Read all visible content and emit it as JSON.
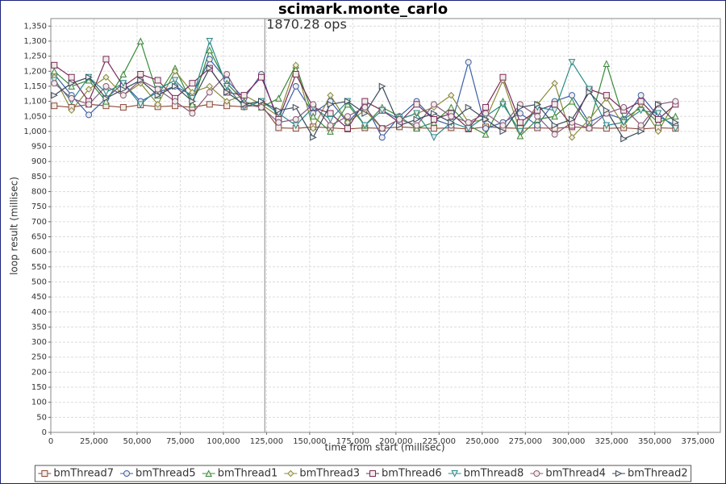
{
  "chart_data": {
    "type": "line",
    "title": "scimark.monte_carlo",
    "xlabel": "time from start (millisec)",
    "ylabel": "loop result (millisec)",
    "annotations": [
      {
        "x": 124000,
        "text": "1870.28 ops"
      }
    ],
    "x": [
      2000,
      12000,
      22000,
      32000,
      42000,
      52000,
      62000,
      72000,
      82000,
      92000,
      102000,
      112000,
      122000,
      132000,
      142000,
      152000,
      162000,
      172000,
      182000,
      192000,
      202000,
      212000,
      222000,
      232000,
      242000,
      252000,
      262000,
      272000,
      282000,
      292000,
      302000,
      312000,
      322000,
      332000,
      342000,
      352000,
      362000
    ],
    "xlim": [
      0,
      388000
    ],
    "xticks": [
      0,
      {
        "value": 25000,
        "label": "25,000"
      },
      {
        "value": 50000,
        "label": "50,000"
      },
      {
        "value": 75000,
        "label": "75,000"
      },
      {
        "value": 100000,
        "label": "100,000"
      },
      {
        "value": 125000,
        "label": "125,000"
      },
      {
        "value": 150000,
        "label": "150,000"
      },
      {
        "value": 175000,
        "label": "175,000"
      },
      {
        "value": 200000,
        "label": "200,000"
      },
      {
        "value": 225000,
        "label": "225,000"
      },
      {
        "value": 250000,
        "label": "250,000"
      },
      {
        "value": 275000,
        "label": "275,000"
      },
      {
        "value": 300000,
        "label": "300,000"
      },
      {
        "value": 325000,
        "label": "325,000"
      },
      {
        "value": 350000,
        "label": "350,000"
      },
      {
        "value": 375000,
        "label": "375,000"
      }
    ],
    "ylim": [
      0,
      1375
    ],
    "yticks": [
      0,
      50,
      100,
      150,
      200,
      250,
      300,
      350,
      400,
      450,
      500,
      550,
      600,
      650,
      700,
      750,
      800,
      850,
      900,
      950,
      {
        "value": 1000,
        "label": "1,000"
      },
      {
        "value": 1050,
        "label": "1,050"
      },
      {
        "value": 1100,
        "label": "1,100"
      },
      {
        "value": 1150,
        "label": "1,150"
      },
      {
        "value": 1200,
        "label": "1,200"
      },
      {
        "value": 1250,
        "label": "1,250"
      },
      {
        "value": 1300,
        "label": "1,300"
      },
      {
        "value": 1350,
        "label": "1,350"
      }
    ],
    "grid": true,
    "legend": "bottom",
    "series": [
      {
        "name": "bmThread7",
        "color": "#8b4a3a",
        "marker": "square",
        "values": [
          1085,
          1080,
          1090,
          1085,
          1080,
          1088,
          1082,
          1085,
          1080,
          1090,
          1085,
          1082,
          1088,
          1012,
          1010,
          1015,
          1012,
          1008,
          1012,
          1010,
          1015,
          1012,
          1010,
          1012,
          1008,
          1015,
          1012,
          1010,
          1012,
          1010,
          1015,
          1012,
          1010,
          1012,
          1008,
          1012,
          1010
        ]
      },
      {
        "name": "bmThread5",
        "color": "#3a5fa8",
        "marker": "circle",
        "values": [
          1190,
          1120,
          1055,
          1110,
          1160,
          1100,
          1130,
          1150,
          1120,
          1240,
          1170,
          1110,
          1190,
          1030,
          1150,
          1060,
          1100,
          1030,
          1090,
          980,
          1050,
          1100,
          1040,
          1020,
          1230,
          1010,
          1030,
          1060,
          1020,
          1100,
          1120,
          1030,
          1060,
          1040,
          1120,
          1050,
          1020
        ]
      },
      {
        "name": "bmThread1",
        "color": "#3a8a3a",
        "marker": "triangle-up",
        "values": [
          1200,
          1150,
          1170,
          1100,
          1190,
          1300,
          1120,
          1210,
          1090,
          1270,
          1160,
          1100,
          1080,
          1110,
          1220,
          1050,
          1000,
          1090,
          1020,
          1080,
          1050,
          1010,
          1030,
          1080,
          1020,
          990,
          1100,
          985,
          1040,
          1050,
          1100,
          1020,
          1225,
          1040,
          1080,
          1030,
          1050
        ]
      },
      {
        "name": "bmThread3",
        "color": "#8a8a3a",
        "marker": "diamond",
        "values": [
          1180,
          1070,
          1140,
          1180,
          1120,
          1160,
          1090,
          1200,
          1130,
          1150,
          1100,
          1120,
          1090,
          1050,
          1220,
          1010,
          1120,
          1030,
          1070,
          1010,
          1040,
          1060,
          1080,
          1120,
          1030,
          1040,
          1170,
          1000,
          1090,
          1160,
          980,
          1040,
          1110,
          1020,
          1090,
          1000,
          1100
        ]
      },
      {
        "name": "bmThread6",
        "color": "#7a2a5a",
        "marker": "square",
        "values": [
          1220,
          1180,
          1100,
          1240,
          1150,
          1190,
          1170,
          1110,
          1160,
          1210,
          1130,
          1120,
          1180,
          1040,
          1190,
          1080,
          1060,
          1010,
          1100,
          1070,
          1030,
          1090,
          1040,
          1060,
          1010,
          1080,
          1180,
          1030,
          1070,
          1090,
          1020,
          1140,
          1120,
          1070,
          1100,
          1040,
          1090
        ]
      },
      {
        "name": "bmThread8",
        "color": "#2a8a8a",
        "marker": "triangle-down",
        "values": [
          1170,
          1100,
          1180,
          1130,
          1160,
          1090,
          1140,
          1170,
          1110,
          1300,
          1150,
          1080,
          1100,
          1060,
          1020,
          1080,
          1040,
          1100,
          1020,
          1070,
          1040,
          1060,
          980,
          1030,
          1010,
          1050,
          1090,
          1000,
          1080,
          1070,
          1230,
          1140,
          1020,
          1030,
          1070,
          1060,
          1010
        ]
      },
      {
        "name": "bmThread4",
        "color": "#8a5a7a",
        "marker": "circle",
        "values": [
          1160,
          1110,
          1090,
          1150,
          1120,
          1170,
          1140,
          1100,
          1060,
          1130,
          1190,
          1090,
          1080,
          1030,
          1040,
          1090,
          1020,
          1050,
          1080,
          1010,
          1040,
          1020,
          1090,
          1050,
          1030,
          1060,
          1020,
          1090,
          1050,
          990,
          1030,
          1010,
          1060,
          1080,
          1020,
          1090,
          1100
        ]
      },
      {
        "name": "bmThread2",
        "color": "#3a4a5a",
        "marker": "triangle-right",
        "values": [
          1120,
          1160,
          1180,
          1110,
          1140,
          1170,
          1120,
          1150,
          1100,
          1210,
          1130,
          1090,
          1100,
          1070,
          1080,
          980,
          1090,
          1100,
          1060,
          1150,
          1020,
          1040,
          1060,
          1030,
          1080,
          1040,
          1000,
          1080,
          1090,
          1020,
          1040,
          1130,
          1070,
          975,
          1000,
          1090,
          1030
        ]
      }
    ]
  }
}
